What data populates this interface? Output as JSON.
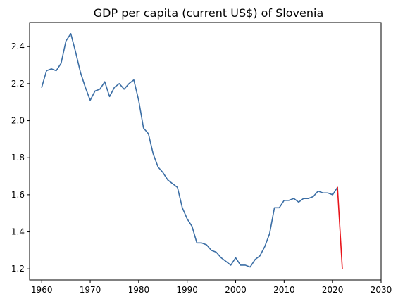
{
  "chart_data": {
    "type": "line",
    "title": "GDP per capita (current US$) of Slovenia",
    "xlabel": "",
    "ylabel": "",
    "xlim": [
      1957.5,
      2030
    ],
    "ylim": [
      1.14,
      2.53
    ],
    "x_ticks": [
      1960,
      1970,
      1980,
      1990,
      2000,
      2010,
      2020,
      2030
    ],
    "y_ticks": [
      1.2,
      1.4,
      1.6,
      1.8,
      2.0,
      2.2,
      2.4
    ],
    "grid": false,
    "legend": "none",
    "series": [
      {
        "color": "#3b6ea5",
        "x": [
          1960,
          1961,
          1962,
          1963,
          1964,
          1965,
          1966,
          1967,
          1968,
          1969,
          1970,
          1971,
          1972,
          1973,
          1974,
          1975,
          1976,
          1977,
          1978,
          1979,
          1980,
          1981,
          1982,
          1983,
          1984,
          1985,
          1986,
          1987,
          1988,
          1989,
          1990,
          1991,
          1992,
          1993,
          1994,
          1995,
          1996,
          1997,
          1998,
          1999,
          2000,
          2001,
          2002,
          2003,
          2004,
          2005,
          2006,
          2007,
          2008,
          2009,
          2010,
          2011,
          2012,
          2013,
          2014,
          2015,
          2016,
          2017,
          2018,
          2019,
          2020,
          2021
        ],
        "y": [
          2.18,
          2.27,
          2.28,
          2.27,
          2.31,
          2.43,
          2.47,
          2.37,
          2.26,
          2.18,
          2.11,
          2.16,
          2.17,
          2.21,
          2.13,
          2.18,
          2.2,
          2.17,
          2.2,
          2.22,
          2.11,
          1.96,
          1.93,
          1.82,
          1.75,
          1.72,
          1.68,
          1.66,
          1.64,
          1.53,
          1.47,
          1.43,
          1.34,
          1.34,
          1.33,
          1.3,
          1.29,
          1.26,
          1.24,
          1.22,
          1.26,
          1.22,
          1.22,
          1.21,
          1.25,
          1.27,
          1.32,
          1.39,
          1.53,
          1.53,
          1.57,
          1.57,
          1.58,
          1.56,
          1.58,
          1.58,
          1.59,
          1.62,
          1.61,
          1.61,
          1.6,
          1.64
        ]
      },
      {
        "color": "#e8141a",
        "x": [
          2021,
          2022
        ],
        "y": [
          1.64,
          1.2
        ]
      }
    ]
  }
}
